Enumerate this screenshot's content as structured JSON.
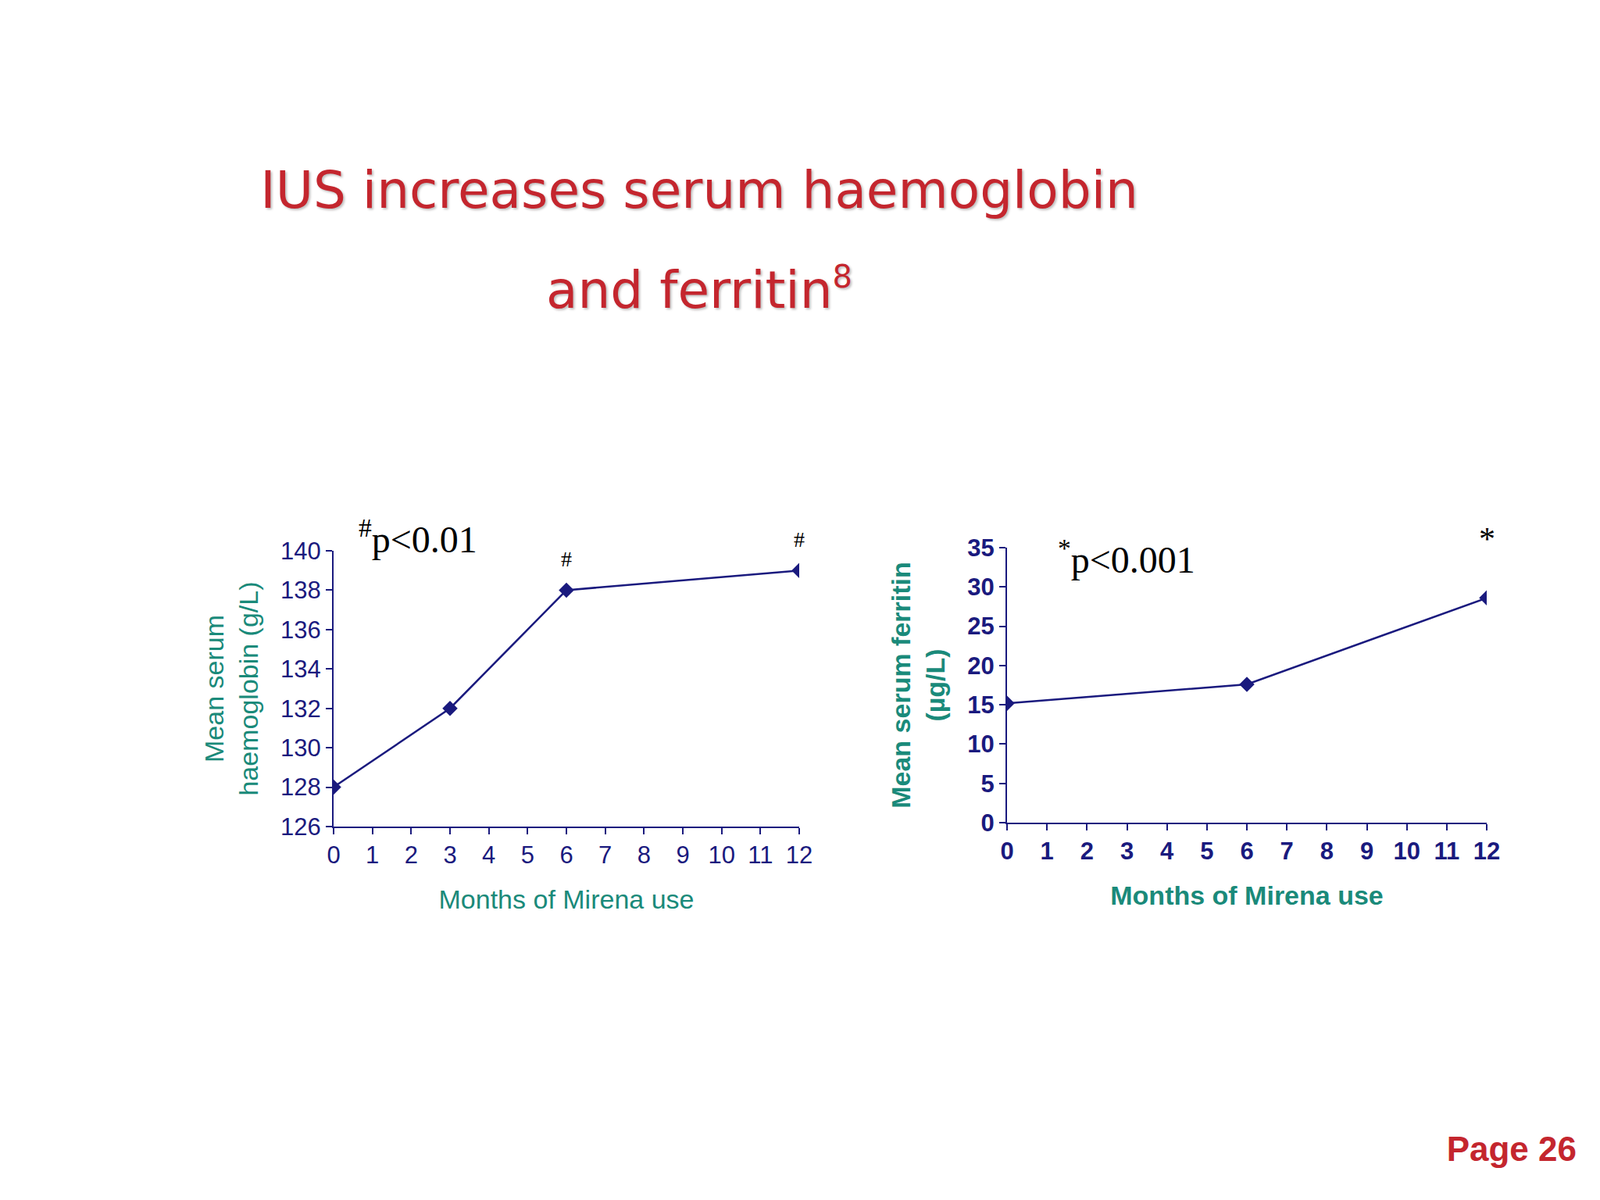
{
  "slide": {
    "title_lines": [
      "IUS increases serum haemoglobin",
      "and ferritin"
    ],
    "title_reference": "8",
    "page": "Page 26"
  },
  "chart_data": [
    {
      "type": "line",
      "x_label": "Months of Mirena use",
      "y_label_lines": [
        "Mean serum",
        "haemoglobin (g/L)"
      ],
      "x": [
        0,
        3,
        6,
        12
      ],
      "values": [
        128,
        132,
        138,
        139
      ],
      "color": "#1a1a7e",
      "marker": "diamond",
      "xlim": [
        0,
        12
      ],
      "xticks": [
        0,
        1,
        2,
        3,
        4,
        5,
        6,
        7,
        8,
        9,
        10,
        11,
        12
      ],
      "ylim": [
        126,
        140
      ],
      "yticks": [
        126,
        128,
        130,
        132,
        134,
        136,
        138,
        140
      ],
      "note": {
        "symbol": "#",
        "text": "p<0.01"
      },
      "significant_at": [
        6,
        12
      ]
    },
    {
      "type": "line",
      "x_label": "Months of Mirena use",
      "y_label_lines": [
        "Mean serum ferritin",
        "(µg/L)"
      ],
      "x": [
        0,
        6,
        12
      ],
      "values": [
        15.2,
        17.6,
        28.6
      ],
      "color": "#1a1a7e",
      "marker": "diamond",
      "xlim": [
        0,
        12
      ],
      "xticks": [
        0,
        1,
        2,
        3,
        4,
        5,
        6,
        7,
        8,
        9,
        10,
        11,
        12
      ],
      "ylim": [
        0,
        35
      ],
      "yticks": [
        0,
        5,
        10,
        15,
        20,
        25,
        30,
        35
      ],
      "note": {
        "symbol": "*",
        "text": "p<0.001"
      },
      "significant_at": [
        12
      ]
    }
  ]
}
